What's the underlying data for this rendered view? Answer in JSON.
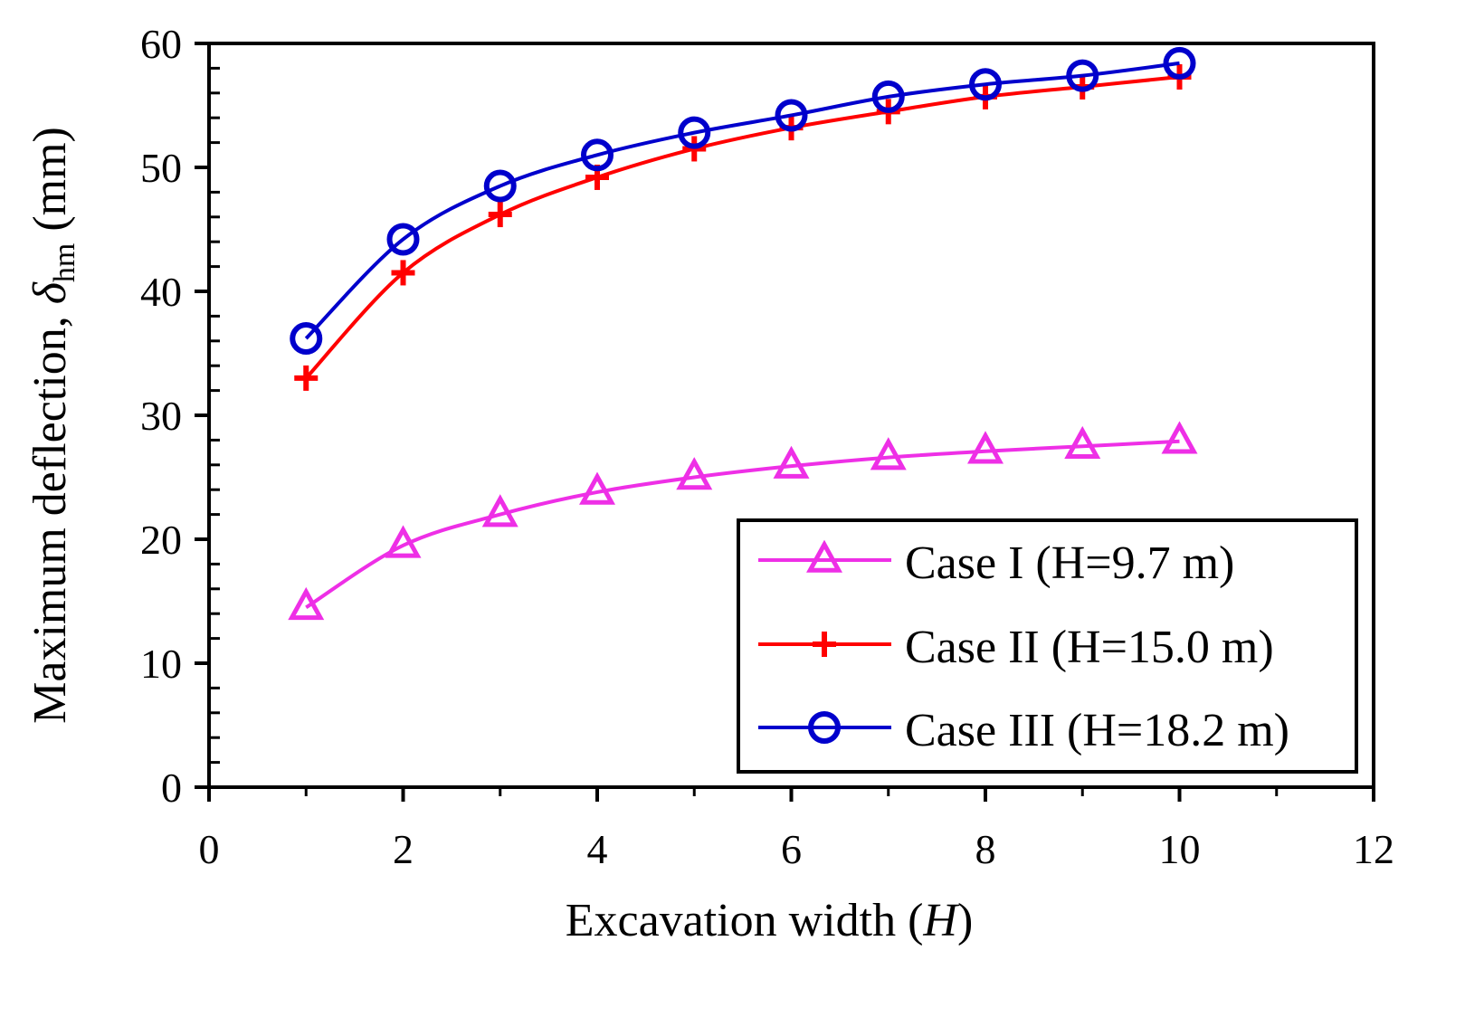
{
  "chart_data": {
    "type": "line",
    "x": [
      1,
      2,
      3,
      4,
      5,
      6,
      7,
      8,
      9,
      10
    ],
    "series": [
      {
        "name": "Case I (H=9.7 m)",
        "color": "#ee2fe6",
        "marker": "triangle",
        "values": [
          14.5,
          19.5,
          22.0,
          23.8,
          25.0,
          25.9,
          26.6,
          27.1,
          27.5,
          27.9
        ]
      },
      {
        "name": "Case II (H=15.0 m)",
        "color": "#ff0000",
        "marker": "plus",
        "values": [
          33.0,
          41.5,
          46.2,
          49.2,
          51.5,
          53.2,
          54.5,
          55.7,
          56.5,
          57.3
        ]
      },
      {
        "name": "Case III (H=18.2 m)",
        "color": "#0000cc",
        "marker": "circle",
        "values": [
          36.2,
          44.2,
          48.5,
          51.0,
          52.8,
          54.2,
          55.7,
          56.7,
          57.4,
          58.4
        ]
      }
    ],
    "xlabel": {
      "main": "Excavation width (",
      "italic": "H",
      "close": ")"
    },
    "ylabel": {
      "main": "Maximum deflection, ",
      "symbol": "δ",
      "subscript": "hm",
      "unit": " (mm)"
    },
    "xlim": [
      0,
      12
    ],
    "ylim": [
      0,
      60
    ],
    "xticks": [
      "0",
      "2",
      "4",
      "6",
      "8",
      "10",
      "12"
    ],
    "yticks": [
      "0",
      "10",
      "20",
      "30",
      "40",
      "50",
      "60"
    ],
    "legend_position": "bottom-right",
    "grid": false
  }
}
